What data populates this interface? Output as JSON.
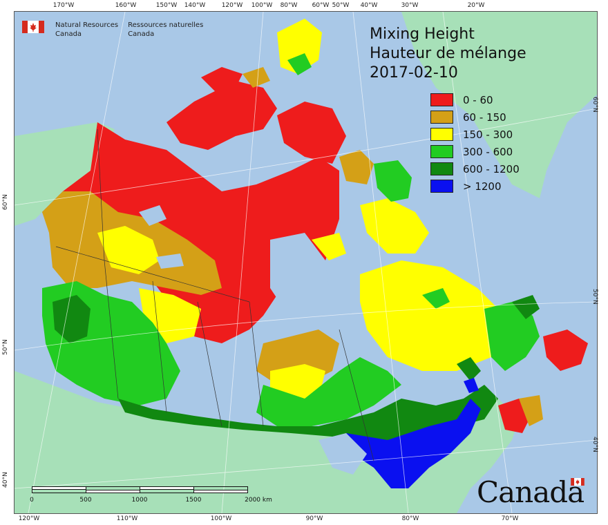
{
  "map": {
    "title_lines": [
      "Mixing Height",
      "Hauteur de mélange",
      "2017-02-10"
    ],
    "legend": [
      {
        "label": "0 - 60",
        "color": "#ee1c1c"
      },
      {
        "label": "60 - 150",
        "color": "#d4a017"
      },
      {
        "label": "150 - 300",
        "color": "#ffff00"
      },
      {
        "label": "300 - 600",
        "color": "#22cc22"
      },
      {
        "label": "600 - 1200",
        "color": "#118811"
      },
      {
        "label": "> 1200",
        "color": "#0a10f0"
      }
    ],
    "colors": {
      "ocean": "#a9c8e7",
      "land": "#a7e0b8",
      "grid": "#ffffff",
      "border": "#333333"
    },
    "top_ticks": [
      "170°W",
      "160°W",
      "150°W",
      "140°W",
      "120°W",
      "100°W",
      "80°W",
      "60°W",
      "50°W",
      "40°W",
      "30°W",
      "20°W"
    ],
    "bottom_ticks": [
      "120°W",
      "110°W",
      "100°W",
      "90°W",
      "80°W",
      "70°W"
    ],
    "left_ticks": [
      "60°N",
      "50°N",
      "40°N"
    ],
    "right_ticks": [
      "60°N",
      "50°N",
      "40°N"
    ],
    "scale_labels": [
      "0",
      "500",
      "1000",
      "1500",
      "2000 km"
    ]
  },
  "branding": {
    "department_en": [
      "Natural Resources",
      "Canada"
    ],
    "department_fr": [
      "Ressources naturelles",
      "Canada"
    ],
    "wordmark": "Canada"
  }
}
